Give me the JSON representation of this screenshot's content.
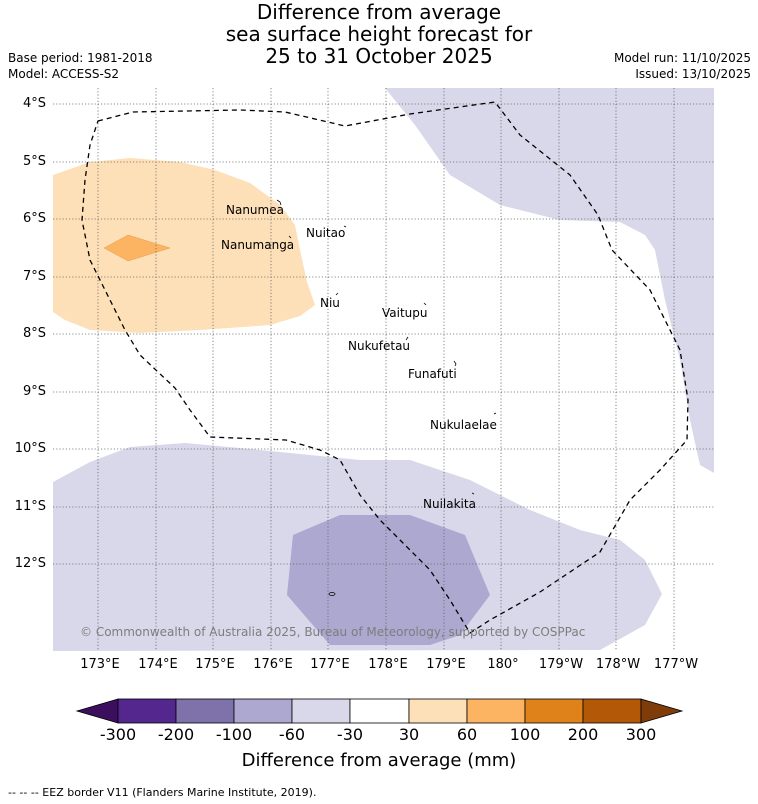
{
  "title": {
    "line1": "Difference from average",
    "line2": "sea surface height forecast for",
    "line3": "25 to 31 October 2025"
  },
  "meta": {
    "base_period": "Base period: 1981-2018",
    "model": "Model: ACCESS-S2",
    "model_run": "Model run: 11/10/2025",
    "issued": "Issued: 13/10/2025"
  },
  "axes": {
    "lat_labels": [
      "4°S",
      "5°S",
      "6°S",
      "7°S",
      "8°S",
      "9°S",
      "10°S",
      "11°S",
      "12°S"
    ],
    "lon_labels": [
      "173°E",
      "174°E",
      "175°E",
      "176°E",
      "177°E",
      "178°E",
      "179°E",
      "180°",
      "179°W",
      "178°W",
      "177°W"
    ]
  },
  "places": [
    "Nanumea",
    "Nuitao",
    "Nanumanga",
    "Niu",
    "Vaitupu",
    "Nukufetau",
    "Funafuti",
    "Nukulaelae",
    "Nuilakita"
  ],
  "copyright": "© Commonwealth of Australia 2025, Bureau of Meteorology, supported by COSPPac",
  "colorbar": {
    "ticks": [
      "-300",
      "-200",
      "-100",
      "-60",
      "-30",
      "30",
      "60",
      "100",
      "200",
      "300"
    ],
    "colors": [
      "#3b0f5e",
      "#54278f",
      "#7f72ab",
      "#aca8d0",
      "#d8d8ea",
      "#ffffff",
      "#fde0b7",
      "#fcb462",
      "#e0821a",
      "#b35806",
      "#7f3b08"
    ],
    "title": "Difference from average (mm)"
  },
  "footer": "--  --  -- EEZ border V11 (Flanders Marine Institute, 2019)."
}
